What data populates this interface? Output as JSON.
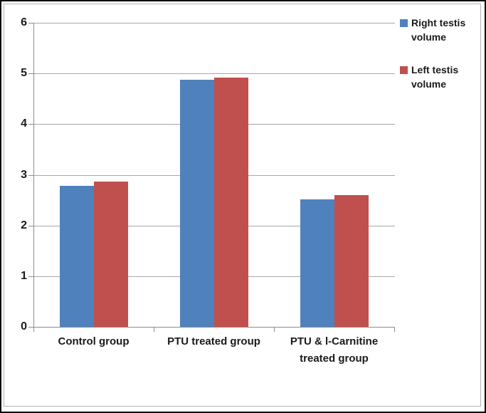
{
  "frame": {
    "background": "#ffffff",
    "outer_border_color": "#0a0a0a",
    "chart_border_color": "#b3b3b3"
  },
  "chart_data": {
    "type": "bar",
    "title": "",
    "xlabel": "",
    "ylabel": "",
    "categories": [
      "Control group",
      "PTU treated group",
      "PTU & l-Carnitine treated group"
    ],
    "series": [
      {
        "name": "Right testis volume",
        "color": "#4F81BD",
        "values": [
          2.78,
          4.88,
          2.52
        ]
      },
      {
        "name": "Left testis volume",
        "color": "#C0504D",
        "values": [
          2.86,
          4.92,
          2.6
        ]
      }
    ],
    "ylim": [
      0,
      6
    ],
    "yticks": [
      0,
      1,
      2,
      3,
      4,
      5,
      6
    ],
    "grid": true,
    "gridline_color": "#a8a8a8",
    "axis_color": "#8c8c8c",
    "text_color": "#1a1a1a",
    "legend_position": "right"
  }
}
